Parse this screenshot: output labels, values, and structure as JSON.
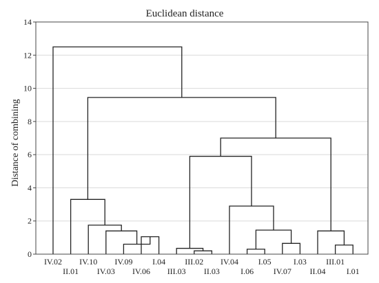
{
  "chart_data": {
    "type": "dendrogram",
    "title": "Euclidean distance",
    "xlabel": "",
    "ylabel": "Distance of combining",
    "ylim": [
      0,
      14
    ],
    "yticks": [
      0,
      2,
      4,
      6,
      8,
      10,
      12,
      14
    ],
    "grid": true,
    "leaves": [
      "IV.02",
      "II.01",
      "IV.10",
      "IV.03",
      "IV.09",
      "IV.06",
      "I.04",
      "III.03",
      "III.02",
      "II.03",
      "IV.04",
      "I.06",
      "I.05",
      "IV.07",
      "I.03",
      "II.04",
      "III.01",
      "I.01"
    ],
    "merges": [
      {
        "a": "IV.06",
        "b": "I.04",
        "height": 1.05
      },
      {
        "a": "IV.09",
        "b": "IV.06+I.04",
        "height": 0.6
      },
      {
        "a": "II.03",
        "b": "III.02",
        "height": 0.2
      },
      {
        "a": "III.03",
        "b": "III.02+II.03",
        "height": 0.35
      },
      {
        "a": "I.06",
        "b": "I.05",
        "height": 0.3
      },
      {
        "a": "IV.07",
        "b": "I.03",
        "height": 0.65
      },
      {
        "a": "I.06+I.05",
        "b": "IV.07+I.03",
        "height": 1.45
      },
      {
        "a": "III.01",
        "b": "I.01",
        "height": 0.55
      },
      {
        "a": "IV.03",
        "b": "IV.09+IV.06+I.04",
        "height": 1.4
      },
      {
        "a": "II.04",
        "b": "III.01+I.01",
        "height": 1.4
      },
      {
        "a": "IV.10",
        "b": "IV.03 cluster",
        "height": 1.75
      },
      {
        "a": "IV.04",
        "b": "I.06..I.03 cluster",
        "height": 2.9
      },
      {
        "a": "II.01",
        "b": "IV.10 cluster",
        "height": 3.3
      },
      {
        "a": "III.03 cluster",
        "b": "IV.04 cluster",
        "height": 5.9
      },
      {
        "a": "III.03..I.03 cluster",
        "b": "II.04 cluster",
        "height": 7.0
      },
      {
        "a": "II.01 cluster",
        "b": "III.03..I.01 cluster",
        "height": 9.45
      },
      {
        "a": "IV.02",
        "b": "all others",
        "height": 12.5
      }
    ]
  }
}
